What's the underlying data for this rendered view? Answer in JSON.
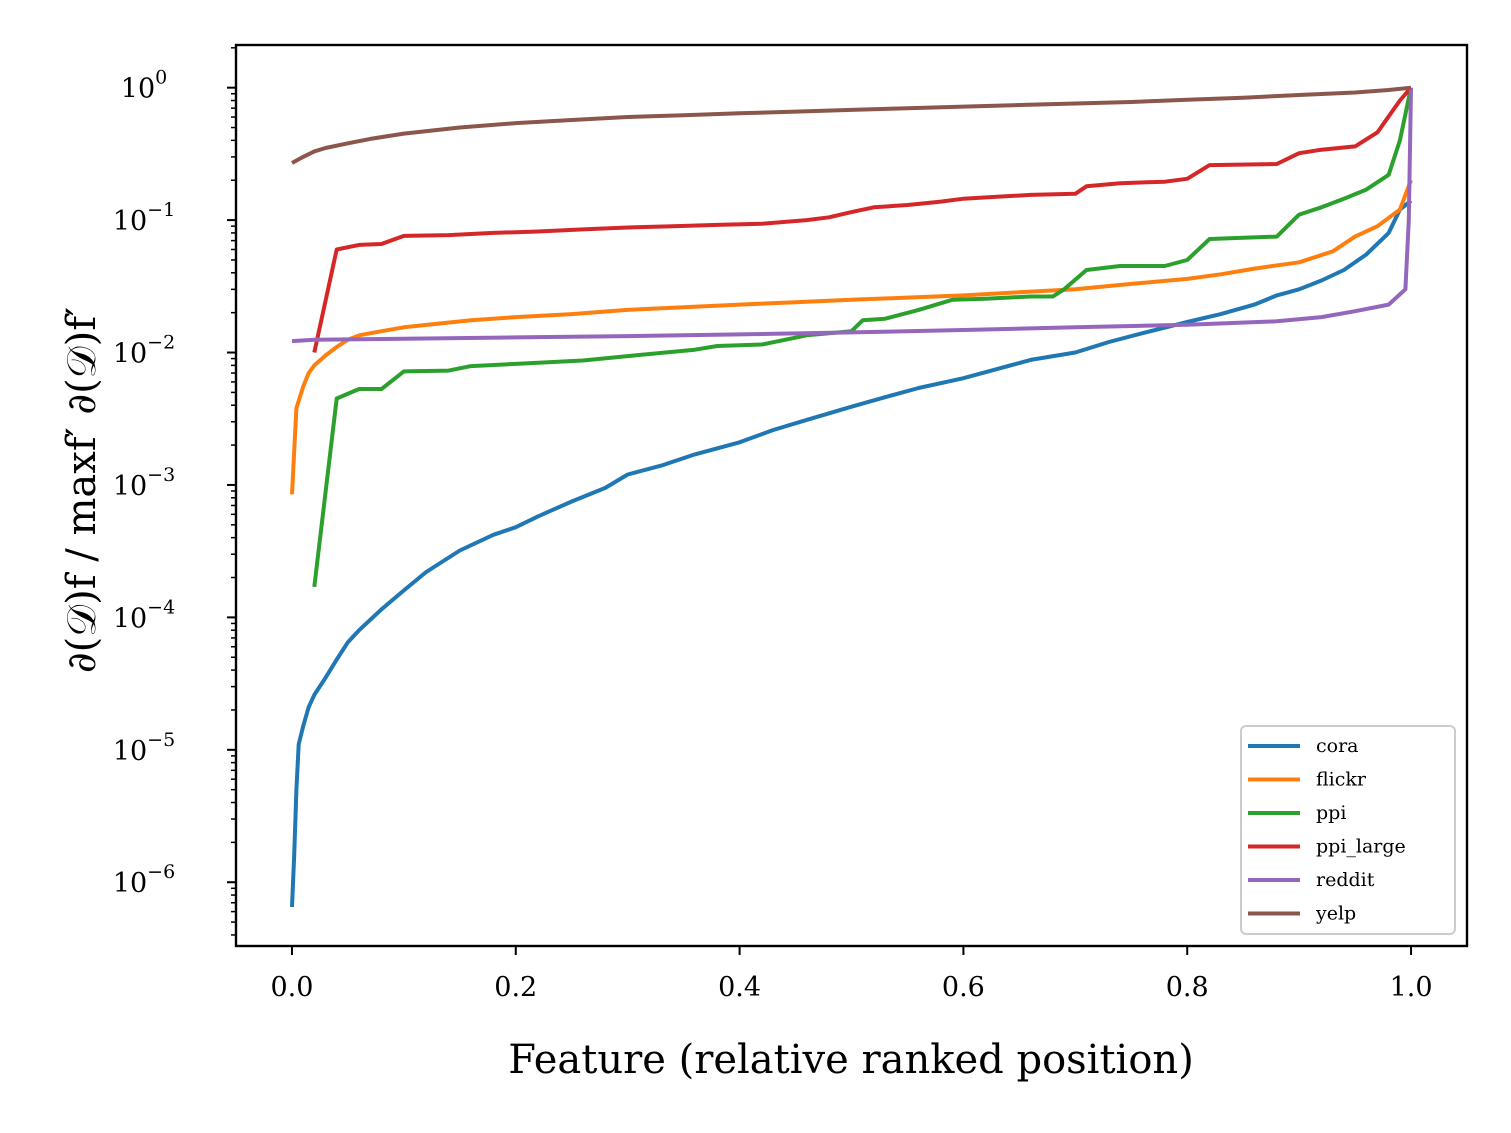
{
  "chart_data": {
    "type": "line",
    "title": "",
    "xlabel": "Feature (relative ranked position)",
    "ylabel": "∂(𝒟)f / maxf′ ∂(𝒟)f′",
    "yscale": "log",
    "xlim": [
      -0.05,
      1.05
    ],
    "ylim": [
      3.3e-07,
      2.1
    ],
    "x_ticks": [
      0.0,
      0.2,
      0.4,
      0.6,
      0.8,
      1.0
    ],
    "x_tick_labels": [
      "0.0",
      "0.2",
      "0.4",
      "0.6",
      "0.8",
      "1.0"
    ],
    "y_ticks": [
      1e-06,
      1e-05,
      0.0001,
      0.001,
      0.01,
      0.1,
      1
    ],
    "y_tick_labels": [
      {
        "base": "10",
        "exp": "−6"
      },
      {
        "base": "10",
        "exp": "−5"
      },
      {
        "base": "10",
        "exp": "−4"
      },
      {
        "base": "10",
        "exp": "−3"
      },
      {
        "base": "10",
        "exp": "−2"
      },
      {
        "base": "10",
        "exp": "−1"
      },
      {
        "base": "10",
        "exp": "0"
      }
    ],
    "legend_position": "bottom-right",
    "series": [
      {
        "name": "cora",
        "color": "#1f77b4",
        "x": [
          0.0,
          0.002,
          0.004,
          0.006,
          0.01,
          0.015,
          0.02,
          0.03,
          0.04,
          0.05,
          0.06,
          0.08,
          0.1,
          0.12,
          0.15,
          0.18,
          0.2,
          0.22,
          0.25,
          0.28,
          0.3,
          0.33,
          0.36,
          0.4,
          0.43,
          0.46,
          0.5,
          0.53,
          0.56,
          0.6,
          0.63,
          0.66,
          0.7,
          0.73,
          0.76,
          0.8,
          0.83,
          0.86,
          0.88,
          0.9,
          0.92,
          0.94,
          0.96,
          0.98,
          0.99,
          1.0
        ],
        "y": [
          6.5e-07,
          1.6e-06,
          5e-06,
          1.1e-05,
          1.5e-05,
          2.1e-05,
          2.6e-05,
          3.5e-05,
          4.8e-05,
          6.5e-05,
          8e-05,
          0.000115,
          0.00016,
          0.00022,
          0.00032,
          0.00042,
          0.00048,
          0.00058,
          0.00075,
          0.00095,
          0.0012,
          0.0014,
          0.0017,
          0.0021,
          0.0026,
          0.0031,
          0.0039,
          0.0046,
          0.0054,
          0.0064,
          0.0075,
          0.0088,
          0.01,
          0.012,
          0.014,
          0.017,
          0.0195,
          0.023,
          0.027,
          0.03,
          0.035,
          0.042,
          0.055,
          0.08,
          0.12,
          0.14
        ]
      },
      {
        "name": "flickr",
        "color": "#ff7f0e",
        "x": [
          0.0,
          0.004,
          0.01,
          0.015,
          0.02,
          0.03,
          0.04,
          0.05,
          0.06,
          0.08,
          0.1,
          0.13,
          0.16,
          0.2,
          0.25,
          0.3,
          0.35,
          0.4,
          0.45,
          0.5,
          0.55,
          0.6,
          0.65,
          0.7,
          0.75,
          0.8,
          0.83,
          0.86,
          0.9,
          0.93,
          0.95,
          0.97,
          0.99,
          1.0
        ],
        "y": [
          0.00085,
          0.0038,
          0.0055,
          0.007,
          0.008,
          0.0095,
          0.011,
          0.0125,
          0.0135,
          0.0145,
          0.0155,
          0.0165,
          0.0175,
          0.0185,
          0.0195,
          0.021,
          0.022,
          0.023,
          0.024,
          0.025,
          0.026,
          0.027,
          0.0285,
          0.03,
          0.033,
          0.036,
          0.039,
          0.043,
          0.048,
          0.058,
          0.075,
          0.09,
          0.12,
          0.2
        ]
      },
      {
        "name": "ppi",
        "color": "#2ca02c",
        "x": [
          0.02,
          0.04,
          0.06,
          0.08,
          0.1,
          0.14,
          0.16,
          0.2,
          0.26,
          0.3,
          0.36,
          0.38,
          0.42,
          0.46,
          0.5,
          0.51,
          0.53,
          0.56,
          0.59,
          0.62,
          0.66,
          0.68,
          0.69,
          0.71,
          0.74,
          0.78,
          0.8,
          0.82,
          0.88,
          0.9,
          0.92,
          0.94,
          0.96,
          0.98,
          0.99,
          1.0
        ],
        "y": [
          0.00017,
          0.0045,
          0.0053,
          0.0053,
          0.0072,
          0.0073,
          0.0079,
          0.0082,
          0.0087,
          0.0094,
          0.0105,
          0.0112,
          0.0115,
          0.0135,
          0.0145,
          0.0175,
          0.018,
          0.021,
          0.025,
          0.0255,
          0.0265,
          0.0265,
          0.03,
          0.042,
          0.045,
          0.045,
          0.05,
          0.072,
          0.075,
          0.11,
          0.125,
          0.145,
          0.17,
          0.22,
          0.4,
          1.0
        ]
      },
      {
        "name": "ppi_large",
        "color": "#d62728",
        "x": [
          0.02,
          0.04,
          0.06,
          0.08,
          0.1,
          0.14,
          0.18,
          0.22,
          0.26,
          0.3,
          0.34,
          0.38,
          0.42,
          0.46,
          0.48,
          0.5,
          0.52,
          0.55,
          0.58,
          0.6,
          0.63,
          0.66,
          0.7,
          0.71,
          0.74,
          0.78,
          0.8,
          0.82,
          0.88,
          0.9,
          0.92,
          0.95,
          0.97,
          0.99,
          1.0
        ],
        "y": [
          0.01,
          0.06,
          0.065,
          0.066,
          0.076,
          0.077,
          0.08,
          0.082,
          0.085,
          0.088,
          0.09,
          0.092,
          0.094,
          0.1,
          0.105,
          0.115,
          0.125,
          0.13,
          0.138,
          0.145,
          0.15,
          0.155,
          0.158,
          0.18,
          0.19,
          0.195,
          0.205,
          0.26,
          0.265,
          0.32,
          0.34,
          0.36,
          0.46,
          0.8,
          1.0
        ]
      },
      {
        "name": "reddit",
        "color": "#9467bd",
        "x": [
          0.0,
          0.02,
          0.1,
          0.2,
          0.3,
          0.4,
          0.5,
          0.6,
          0.7,
          0.8,
          0.88,
          0.92,
          0.95,
          0.98,
          0.995,
          0.998,
          1.0
        ],
        "y": [
          0.0122,
          0.0125,
          0.0127,
          0.013,
          0.0133,
          0.0137,
          0.0142,
          0.0148,
          0.0155,
          0.0162,
          0.0172,
          0.0185,
          0.0205,
          0.023,
          0.03,
          0.1,
          1.0
        ]
      },
      {
        "name": "yelp",
        "color": "#8c564b",
        "x": [
          0.0,
          0.01,
          0.02,
          0.03,
          0.05,
          0.07,
          0.1,
          0.15,
          0.2,
          0.25,
          0.3,
          0.35,
          0.4,
          0.45,
          0.5,
          0.55,
          0.6,
          0.65,
          0.7,
          0.75,
          0.8,
          0.85,
          0.9,
          0.95,
          0.98,
          1.0
        ],
        "y": [
          0.27,
          0.3,
          0.33,
          0.35,
          0.38,
          0.41,
          0.45,
          0.5,
          0.54,
          0.57,
          0.6,
          0.62,
          0.64,
          0.66,
          0.68,
          0.7,
          0.72,
          0.74,
          0.76,
          0.78,
          0.81,
          0.84,
          0.88,
          0.92,
          0.96,
          1.0
        ]
      }
    ]
  }
}
